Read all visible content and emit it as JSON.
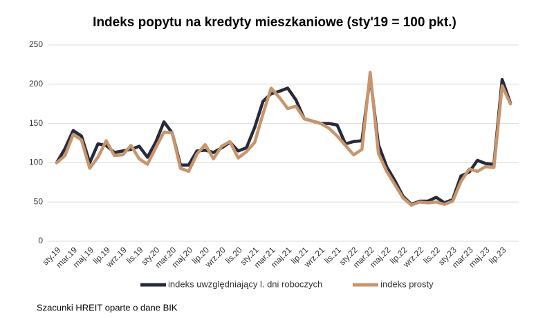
{
  "chart_data": {
    "type": "line",
    "title": "Indeks popytu na kredyty mieszkaniowe (sty'19 = 100 pkt.)",
    "source": "Szacunki HREIT oparte o dane BIK",
    "categories": [
      "sty.19",
      null,
      "mar.19",
      null,
      "maj.19",
      null,
      "lip.19",
      null,
      "wrz.19",
      null,
      "lis.19",
      null,
      "sty.20",
      null,
      "mar.20",
      null,
      "maj.20",
      null,
      "lip.20",
      null,
      "wrz.20",
      null,
      "lis.20",
      null,
      "sty.21",
      null,
      "mar.21",
      null,
      "maj.21",
      null,
      "lip.21",
      null,
      "wrz.21",
      null,
      "lis.21",
      null,
      "sty.22",
      null,
      "mar.22",
      null,
      "maj.22",
      null,
      "lip.22",
      null,
      "wrz.22",
      null,
      "lis.22",
      null,
      "sty.23",
      null,
      "mar.23",
      null,
      "maj.23",
      null,
      "lip.23",
      null
    ],
    "series": [
      {
        "name": "indeks uwzględniający l. dni roboczych",
        "color": "#262a3b",
        "values": [
          100,
          118,
          141,
          134,
          100,
          124,
          122,
          113,
          115,
          117,
          121,
          107,
          126,
          152,
          138,
          97,
          97,
          115,
          116,
          113,
          119,
          126,
          115,
          119,
          145,
          178,
          188,
          191,
          195,
          180,
          156,
          153,
          150,
          150,
          148,
          124,
          127,
          128,
          210,
          123,
          95,
          77,
          57,
          47,
          51,
          51,
          56,
          49,
          53,
          83,
          88,
          103,
          99,
          98,
          206,
          176
        ]
      },
      {
        "name": "indeks prosty",
        "color": "#c8956c",
        "values": [
          100,
          109,
          136,
          129,
          93,
          107,
          128,
          109,
          110,
          122,
          105,
          98,
          119,
          139,
          138,
          93,
          89,
          111,
          123,
          105,
          121,
          127,
          106,
          114,
          126,
          162,
          195,
          183,
          169,
          172,
          156,
          153,
          150,
          144,
          134,
          122,
          110,
          117,
          215,
          112,
          89,
          72,
          55,
          46,
          50,
          49,
          50,
          47,
          51,
          76,
          92,
          89,
          95,
          94,
          198,
          175
        ]
      }
    ],
    "ylim": [
      0,
      250
    ],
    "yticks": [
      0,
      50,
      100,
      150,
      200,
      250
    ],
    "grid": true
  }
}
